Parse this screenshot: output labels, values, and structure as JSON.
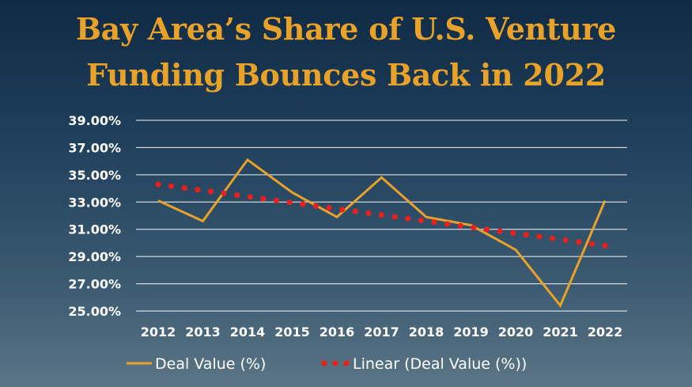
{
  "chart_data": {
    "type": "line",
    "title_lines": [
      "Bay Area’s Share of U.S. Venture",
      "Funding Bounces Back in 2022"
    ],
    "categories": [
      "2012",
      "2013",
      "2014",
      "2015",
      "2016",
      "2017",
      "2018",
      "2019",
      "2020",
      "2021",
      "2022"
    ],
    "y_ticks": [
      "39.00%",
      "37.00%",
      "35.00%",
      "33.00%",
      "31.00%",
      "29.00%",
      "27.00%",
      "25.00%"
    ],
    "ylim": [
      25,
      39
    ],
    "grid": true,
    "legend_position": "bottom",
    "series": [
      {
        "name": "Deal Value (%)",
        "style": "solid",
        "color": "#e8a22a",
        "values": [
          33.1,
          31.6,
          36.1,
          33.7,
          31.9,
          34.8,
          31.9,
          31.3,
          29.5,
          25.4,
          33.1
        ]
      },
      {
        "name": "Linear (Deal Value (%))",
        "style": "dotted",
        "color": "#e8201e",
        "values": [
          34.3,
          33.85,
          33.4,
          32.95,
          32.5,
          32.05,
          31.6,
          31.15,
          30.7,
          30.25,
          29.8
        ]
      }
    ]
  }
}
